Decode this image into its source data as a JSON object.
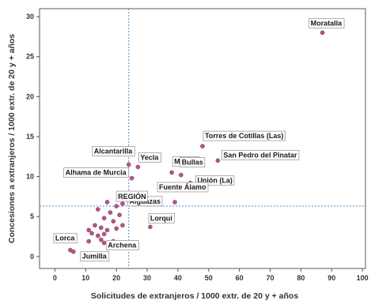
{
  "chart_data": {
    "type": "scatter",
    "xlabel": "Solicitudes de extranjeros / 1000 extr. de 20 y + años",
    "ylabel": "Concesiones a extranjeros / 1000 extr. de 20 y + años",
    "xlim": [
      -5,
      101
    ],
    "ylim": [
      -1.5,
      31
    ],
    "xticks": [
      0,
      10,
      20,
      30,
      40,
      50,
      60,
      70,
      80,
      90,
      100
    ],
    "yticks": [
      0,
      5,
      10,
      15,
      20,
      25,
      30
    ],
    "grid": false,
    "legend": "none",
    "reference_lines": {
      "x": 24,
      "y": 6.3
    },
    "colors": {
      "point": "#b45587",
      "reference_line": "#4a8fc6",
      "frame": "#555555"
    },
    "points": [
      {
        "x": 87,
        "y": 28,
        "label": "Moratalla"
      },
      {
        "x": 48,
        "y": 13.8,
        "label": "Torres de Cotillas (Las)"
      },
      {
        "x": 53,
        "y": 12,
        "label": "San Pedro del Pinatar"
      },
      {
        "x": 24,
        "y": 11.5,
        "label": "Alcantarilla"
      },
      {
        "x": 27,
        "y": 11.2,
        "label": "Yecla"
      },
      {
        "x": 38,
        "y": 10.5,
        "label": "Murcia"
      },
      {
        "x": 41,
        "y": 10.2,
        "label": "Bullas"
      },
      {
        "x": 25,
        "y": 9.8,
        "label": "Alhama de Murcia"
      },
      {
        "x": 44,
        "y": 9.2,
        "label": "Unión (La)"
      },
      {
        "x": 26,
        "y": 7.8,
        "label": "Alguazas"
      },
      {
        "x": 39,
        "y": 6.8,
        "label": "Fuente Álamo"
      },
      {
        "x": 20,
        "y": 6.3,
        "label": "REGIÓN"
      },
      {
        "x": 31,
        "y": 3.7,
        "label": "Lorquí"
      },
      {
        "x": 19,
        "y": 1.9,
        "label": "Archena"
      },
      {
        "x": 5,
        "y": 0.8,
        "label": "Lorca"
      },
      {
        "x": 6,
        "y": 0.6,
        "label": "Jumilla"
      },
      {
        "x": 17,
        "y": 6.8,
        "label": ""
      },
      {
        "x": 22,
        "y": 6.6,
        "label": ""
      },
      {
        "x": 14,
        "y": 5.9,
        "label": ""
      },
      {
        "x": 18,
        "y": 5.5,
        "label": ""
      },
      {
        "x": 21,
        "y": 5.2,
        "label": ""
      },
      {
        "x": 16,
        "y": 4.8,
        "label": ""
      },
      {
        "x": 19,
        "y": 4.4,
        "label": ""
      },
      {
        "x": 13,
        "y": 3.9,
        "label": ""
      },
      {
        "x": 15,
        "y": 3.6,
        "label": ""
      },
      {
        "x": 17,
        "y": 3.3,
        "label": ""
      },
      {
        "x": 20,
        "y": 3.5,
        "label": ""
      },
      {
        "x": 22,
        "y": 3.9,
        "label": ""
      },
      {
        "x": 11,
        "y": 3.3,
        "label": ""
      },
      {
        "x": 12,
        "y": 2.9,
        "label": ""
      },
      {
        "x": 14,
        "y": 2.6,
        "label": ""
      },
      {
        "x": 16,
        "y": 2.8,
        "label": ""
      },
      {
        "x": 15,
        "y": 2.1,
        "label": ""
      },
      {
        "x": 18,
        "y": 1.5,
        "label": ""
      },
      {
        "x": 21,
        "y": 1.4,
        "label": ""
      },
      {
        "x": 22,
        "y": 1.1,
        "label": ""
      },
      {
        "x": 11,
        "y": 1.9,
        "label": ""
      },
      {
        "x": 16,
        "y": 1.7,
        "label": ""
      }
    ]
  }
}
